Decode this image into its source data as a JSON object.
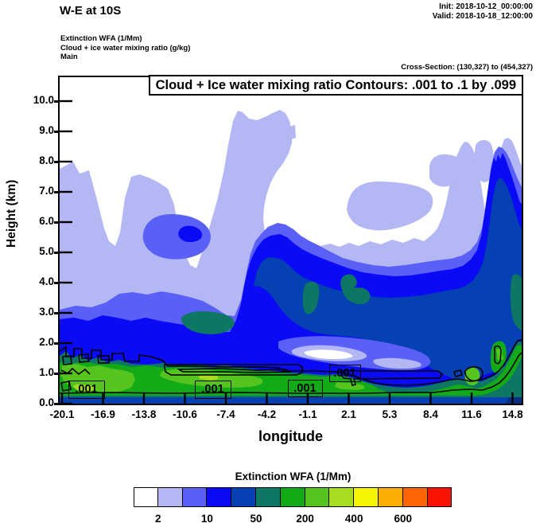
{
  "header": {
    "title": "W-E at 10S",
    "init": "Init: 2018-10-12_00:00:00",
    "valid": "Valid: 2018-10-18_12:00:00",
    "legend_lines": [
      "Extinction WFA   (1/Mm)",
      "Cloud + ice water mixing ratio   (g/kg)",
      "Main"
    ],
    "cross_section": "Cross-Section: (130,327) to (454,327)"
  },
  "plot": {
    "contour_title": "Cloud + Ice water mixing ratio Contours: .001 to .1 by .099",
    "ylabel": "Height (km)",
    "xlabel": "longitude",
    "yticks": [
      "10.0",
      "9.0",
      "8.0",
      "7.0",
      "6.0",
      "5.0",
      "4.0",
      "3.0",
      "2.0",
      "1.0",
      "0.0"
    ],
    "xticks": [
      "-20.1",
      "-16.9",
      "-13.8",
      "-10.6",
      "-7.4",
      "-4.2",
      "-1.1",
      "2.1",
      "5.3",
      "8.4",
      "11.6",
      "14.8"
    ],
    "contour_labels": [
      ".001",
      ".001",
      ".001",
      ".001"
    ]
  },
  "colorbar": {
    "title": "Extinction WFA  (1/Mm)",
    "tick_labels": [
      "2",
      "10",
      "50",
      "200",
      "400",
      "600"
    ],
    "colors": [
      "#FFFFFF",
      "#B3B7F3",
      "#5A5FF5",
      "#0A0AF5",
      "#0641B3",
      "#0E7763",
      "#12AA16",
      "#55C41F",
      "#A8DC20",
      "#F5F502",
      "#FCAE04",
      "#FC6404",
      "#FA1202"
    ]
  },
  "chart_data": {
    "type": "heatmap",
    "title": "W-E at 10S — Extinction WFA cross-section with Cloud + Ice water mixing ratio contours",
    "fields": [
      "Extinction WFA (1/Mm) — filled colors",
      "Cloud + Ice water mixing ratio (g/kg) — line contours .001 to .1 by .099"
    ],
    "xlabel": "longitude",
    "ylabel": "Height (km)",
    "x_ticks": [
      -20.1,
      -16.9,
      -13.8,
      -10.6,
      -7.4,
      -4.2,
      -1.1,
      2.1,
      5.3,
      8.4,
      11.6,
      14.8
    ],
    "y_ticks": [
      0.0,
      1.0,
      2.0,
      3.0,
      4.0,
      5.0,
      6.0,
      7.0,
      8.0,
      9.0,
      10.0
    ],
    "ylim": [
      0.0,
      10.8
    ],
    "colorbar_labeled_levels": [
      2,
      10,
      50,
      200,
      400,
      600
    ],
    "line_contour_levels": [
      0.001,
      0.1
    ],
    "legend_position": "bottom",
    "notes": "Low extinction (white/lavender) aloft; broad blue/navy region (10–200 1/Mm) below ~5 km across the eastern half; green band (200–500 1/Mm) near 0.5–1 km across the section with .001 g/kg cloud-water contour boxes; deep plume reaching ~8 km near 13–15E."
  }
}
